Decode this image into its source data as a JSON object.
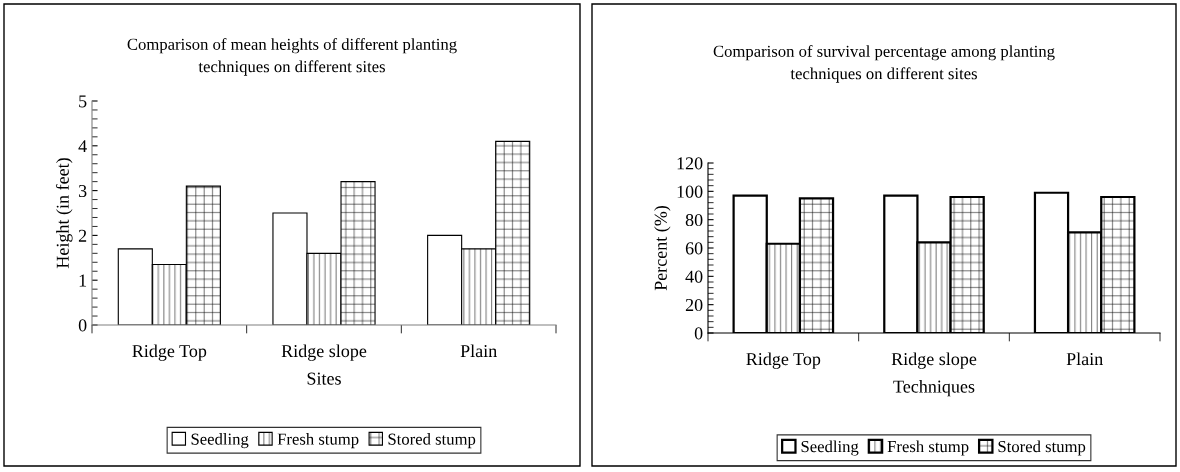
{
  "chart_data": [
    {
      "type": "bar",
      "title": "Comparison of mean heights of different planting\ntechniques on different sites",
      "xlabel": "Sites",
      "ylabel": "Height (in feet)",
      "categories": [
        "Ridge Top",
        "Ridge slope",
        "Plain"
      ],
      "series": [
        {
          "name": "Seedling",
          "color": "#ffffff",
          "values": [
            1.7,
            2.5,
            2.0
          ]
        },
        {
          "name": "Fresh stump",
          "color": "#000000",
          "values": [
            1.35,
            1.6,
            1.7
          ]
        },
        {
          "name": "Stored stump",
          "color": "#000000",
          "values": [
            3.1,
            3.2,
            4.1
          ]
        }
      ],
      "ylim": [
        0,
        5
      ],
      "yticks": [
        0,
        1,
        2,
        3,
        4,
        5
      ],
      "grid": false,
      "legend": "bottom"
    },
    {
      "type": "bar",
      "title": "Comparison of survival percentage among planting\ntechniques on different sites",
      "xlabel": "Techniques",
      "ylabel": "Percent (%)",
      "categories": [
        "Ridge Top",
        "Ridge slope",
        "Plain"
      ],
      "series": [
        {
          "name": "Seedling",
          "color": "#ffffff",
          "values": [
            97,
            97,
            99
          ]
        },
        {
          "name": "Fresh stump",
          "color": "#000000",
          "values": [
            63,
            64,
            71
          ]
        },
        {
          "name": "Stored stump",
          "color": "#000000",
          "values": [
            95,
            96,
            96
          ]
        }
      ],
      "ylim": [
        0,
        120
      ],
      "yticks": [
        0,
        20,
        40,
        60,
        80,
        100,
        120
      ],
      "grid": false,
      "legend": "bottom"
    }
  ]
}
